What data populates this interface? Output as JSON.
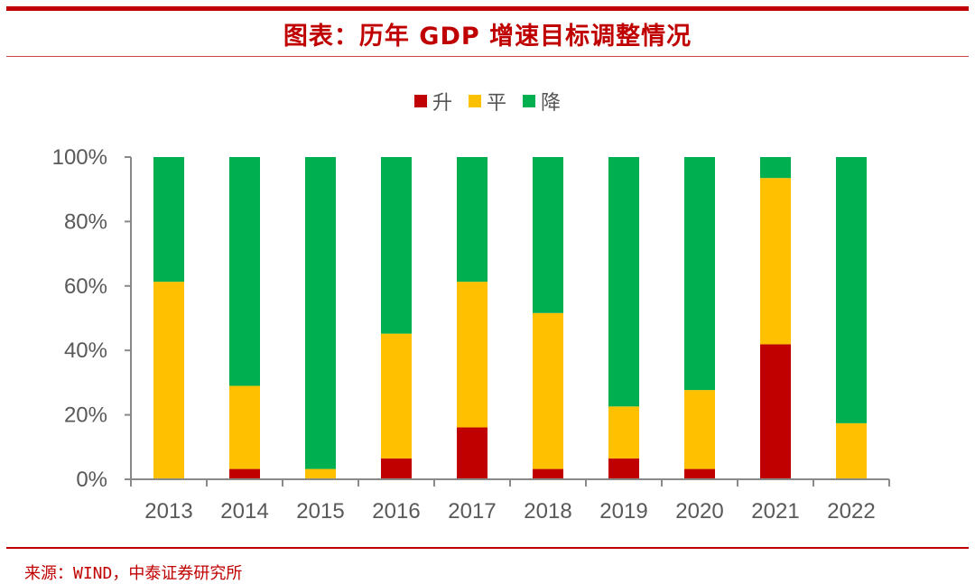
{
  "header": {
    "title": "图表：历年 GDP 增速目标调整情况"
  },
  "footer": {
    "source": "来源：WIND，中泰证券研究所"
  },
  "colors": {
    "accent": "#c00000",
    "up": "#c00000",
    "flat": "#ffc000",
    "down": "#00b050",
    "axis": "#898989",
    "axis_text": "#595959"
  },
  "chart_data": {
    "type": "bar",
    "stacked": true,
    "title": "历年 GDP 增速目标调整情况",
    "xlabel": "",
    "ylabel": "",
    "ylim": [
      0,
      100
    ],
    "y_ticks": [
      "0%",
      "20%",
      "40%",
      "60%",
      "80%",
      "100%"
    ],
    "y_tick_values": [
      0,
      20,
      40,
      60,
      80,
      100
    ],
    "grid": false,
    "legend_position": "top-center",
    "categories": [
      "2013",
      "2014",
      "2015",
      "2016",
      "2017",
      "2018",
      "2019",
      "2020",
      "2021",
      "2022"
    ],
    "series": [
      {
        "name": "升",
        "color": "#c00000",
        "values": [
          0,
          3.2,
          0,
          6.5,
          16.1,
          3.2,
          6.5,
          3.2,
          41.9,
          0
        ]
      },
      {
        "name": "平",
        "color": "#ffc000",
        "values": [
          61.3,
          25.8,
          3.2,
          38.7,
          45.2,
          48.4,
          16.1,
          24.5,
          51.6,
          17.4
        ]
      },
      {
        "name": "降",
        "color": "#00b050",
        "values": [
          38.7,
          71.0,
          96.8,
          54.8,
          38.7,
          48.4,
          77.4,
          72.3,
          6.5,
          82.6
        ]
      }
    ]
  }
}
